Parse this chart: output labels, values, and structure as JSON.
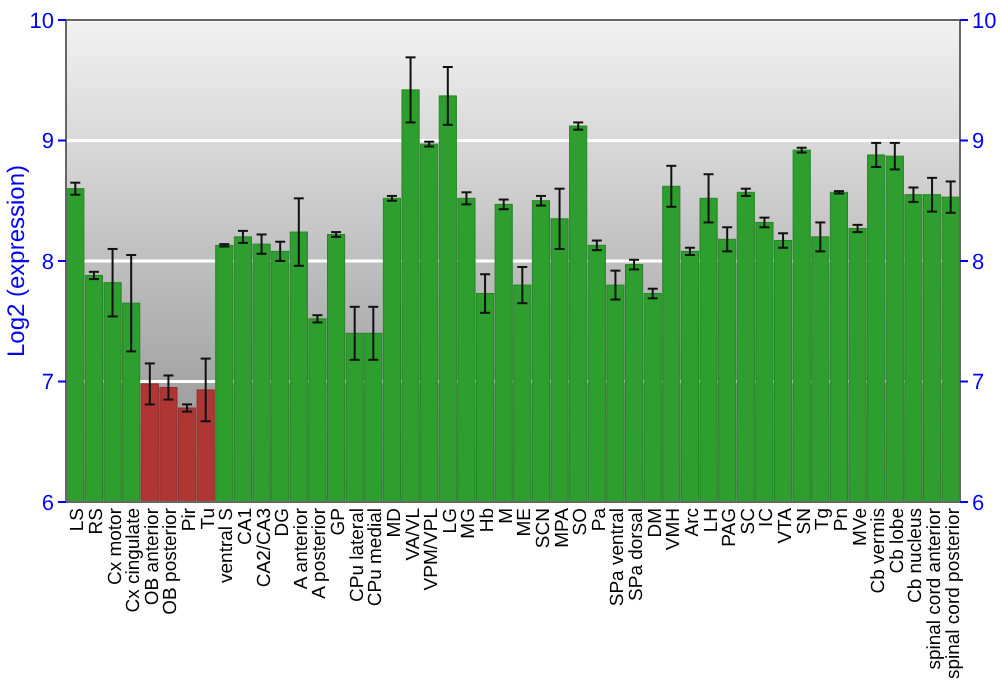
{
  "chart_data": {
    "type": "bar",
    "ylabel": "Log2 (expression)",
    "categories": [
      "LS",
      "RS",
      "Cx motor",
      "Cx cingulate",
      "OB anterior",
      "OB posterior",
      "Pir",
      "Tu",
      "ventral S",
      "CA1",
      "CA2/CA3",
      "DG",
      "A anterior",
      "A posterior",
      "GP",
      "CPu lateral",
      "CPu medial",
      "MD",
      "VA/VL",
      "VPM/VPL",
      "LG",
      "MG",
      "Hb",
      "M",
      "ME",
      "SCN",
      "MPA",
      "SO",
      "Pa",
      "SPa ventral",
      "SPa dorsal",
      "DM",
      "VMH",
      "Arc",
      "LH",
      "PAG",
      "SC",
      "IC",
      "VTA",
      "SN",
      "Tg",
      "Pn",
      "MVe",
      "Cb vermis",
      "Cb lobe",
      "Cb nucleus",
      "spinal cord anterior",
      "spinal cord posterior"
    ],
    "values": [
      8.6,
      7.88,
      7.82,
      7.65,
      6.98,
      6.95,
      6.78,
      6.93,
      8.13,
      8.2,
      8.14,
      8.08,
      8.24,
      7.52,
      8.22,
      7.4,
      7.4,
      8.52,
      9.42,
      8.97,
      9.37,
      8.52,
      7.73,
      8.47,
      7.8,
      8.5,
      8.35,
      9.12,
      8.13,
      7.8,
      7.97,
      7.73,
      8.62,
      8.08,
      8.52,
      8.18,
      8.57,
      8.32,
      8.17,
      8.92,
      8.2,
      8.57,
      8.27,
      8.88,
      8.87,
      8.55,
      8.55,
      8.53
    ],
    "errors": [
      0.05,
      0.03,
      0.28,
      0.4,
      0.17,
      0.1,
      0.03,
      0.26,
      0.01,
      0.05,
      0.08,
      0.08,
      0.28,
      0.03,
      0.02,
      0.22,
      0.22,
      0.02,
      0.27,
      0.02,
      0.24,
      0.05,
      0.16,
      0.04,
      0.15,
      0.04,
      0.25,
      0.03,
      0.04,
      0.12,
      0.04,
      0.04,
      0.17,
      0.03,
      0.2,
      0.1,
      0.03,
      0.04,
      0.06,
      0.02,
      0.12,
      0.01,
      0.03,
      0.1,
      0.11,
      0.06,
      0.14,
      0.13
    ],
    "colors": [
      "#2e9e2e",
      "#2e9e2e",
      "#2e9e2e",
      "#2e9e2e",
      "#b03636",
      "#b03636",
      "#b03636",
      "#b03636",
      "#2e9e2e",
      "#2e9e2e",
      "#2e9e2e",
      "#2e9e2e",
      "#2e9e2e",
      "#2e9e2e",
      "#2e9e2e",
      "#2e9e2e",
      "#2e9e2e",
      "#2e9e2e",
      "#2e9e2e",
      "#2e9e2e",
      "#2e9e2e",
      "#2e9e2e",
      "#2e9e2e",
      "#2e9e2e",
      "#2e9e2e",
      "#2e9e2e",
      "#2e9e2e",
      "#2e9e2e",
      "#2e9e2e",
      "#2e9e2e",
      "#2e9e2e",
      "#2e9e2e",
      "#2e9e2e",
      "#2e9e2e",
      "#2e9e2e",
      "#2e9e2e",
      "#2e9e2e",
      "#2e9e2e",
      "#2e9e2e",
      "#2e9e2e",
      "#2e9e2e",
      "#2e9e2e",
      "#2e9e2e",
      "#2e9e2e",
      "#2e9e2e",
      "#2e9e2e",
      "#2e9e2e",
      "#2e9e2e"
    ],
    "ylim": [
      6,
      10
    ],
    "yticks": [
      6,
      7,
      8,
      9,
      10
    ],
    "y2lim": [
      6,
      10
    ],
    "y2ticks": [
      6,
      7,
      8,
      9,
      10
    ],
    "grid": "y"
  }
}
